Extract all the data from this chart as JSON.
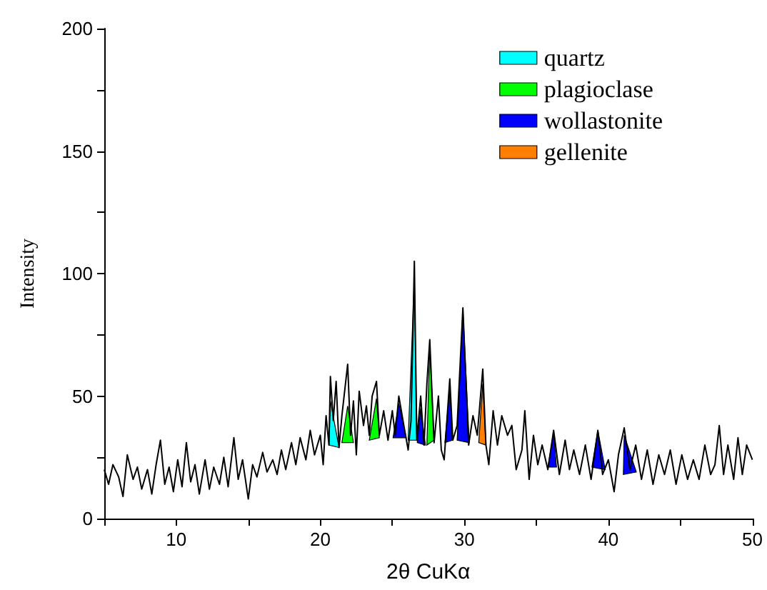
{
  "chart_data": {
    "type": "line",
    "xlabel": "2θ CuKα",
    "ylabel": "Intensity",
    "xlim": [
      5,
      50
    ],
    "xticks": [
      {
        "value": 5,
        "label": null
      },
      10,
      {
        "value": 15,
        "label": null
      },
      20,
      {
        "value": 25,
        "label": null
      },
      30,
      {
        "value": 35,
        "label": null
      },
      40,
      {
        "value": 45,
        "label": null
      },
      50
    ],
    "ylim": [
      0,
      200
    ],
    "yticks": [
      0,
      {
        "value": 25,
        "label": null
      },
      50,
      {
        "value": 75,
        "label": null
      },
      100,
      {
        "value": 125,
        "label": null
      },
      150,
      {
        "value": 175,
        "label": null
      },
      200
    ],
    "grid": false,
    "legend": "top right",
    "marker": "none",
    "line_style": "solid",
    "series": [
      {
        "color": "#000000",
        "x": [
          5,
          5.3,
          5.6,
          6,
          6.3,
          6.6,
          7,
          7.3,
          7.6,
          8,
          8.3,
          8.6,
          8.9,
          9.2,
          9.5,
          9.8,
          10.1,
          10.4,
          10.7,
          11,
          11.3,
          11.6,
          12,
          12.3,
          12.6,
          13,
          13.3,
          13.6,
          14,
          14.3,
          14.6,
          15,
          15.3,
          15.6,
          16,
          16.3,
          16.7,
          17,
          17.3,
          17.6,
          18,
          18.3,
          18.6,
          19,
          19.3,
          19.6,
          20,
          20.2,
          20.4,
          20.6,
          20.7,
          20.9,
          21.1,
          21.3,
          21.5,
          21.9,
          22.1,
          22.3,
          22.5,
          22.7,
          23,
          23.2,
          23.4,
          23.6,
          23.9,
          24.1,
          24.4,
          24.7,
          25,
          25.2,
          25.45,
          25.8,
          26.1,
          26.3,
          26.53,
          26.7,
          26.97,
          27.2,
          27.4,
          27.6,
          27.9,
          28.2,
          28.4,
          28.6,
          28.99,
          29.2,
          29.5,
          29.9,
          30.3,
          30.6,
          30.9,
          31.28,
          31.5,
          31.7,
          32,
          32.3,
          32.6,
          33,
          33.3,
          33.6,
          34,
          34.2,
          34.5,
          34.8,
          35.1,
          35.4,
          35.8,
          36.2,
          36.6,
          37,
          37.3,
          37.6,
          38,
          38.4,
          38.8,
          39.27,
          39.6,
          40,
          40.4,
          40.7,
          41.1,
          41.5,
          41.9,
          42.3,
          42.7,
          43.1,
          43.5,
          43.9,
          44.3,
          44.7,
          45.1,
          45.5,
          45.9,
          46.3,
          46.7,
          47.1,
          47.4,
          47.7,
          48,
          48.3,
          48.7,
          49,
          49.3,
          49.6,
          50
        ],
        "values": [
          20,
          14,
          22,
          17,
          9,
          26,
          16,
          21,
          12,
          20,
          10,
          22,
          32,
          14,
          21,
          11,
          24,
          13,
          31,
          15,
          22,
          10,
          24,
          12,
          21,
          14,
          25,
          13,
          33,
          16,
          24,
          8,
          22,
          17,
          27,
          19,
          24,
          18,
          28,
          20,
          31,
          22,
          33,
          24,
          36,
          26,
          34,
          22,
          42,
          30,
          58,
          40,
          56,
          29,
          42,
          63,
          34,
          48,
          26,
          52,
          38,
          46,
          34,
          50,
          56,
          34,
          44,
          32,
          44,
          34,
          50,
          38,
          28,
          40,
          105,
          32,
          50,
          30,
          55,
          73,
          31,
          50,
          28,
          24,
          57,
          32,
          38,
          86,
          30,
          42,
          34,
          61,
          30,
          22,
          44,
          30,
          42,
          34,
          38,
          20,
          28,
          44,
          16,
          34,
          22,
          30,
          20,
          36,
          18,
          32,
          20,
          28,
          18,
          30,
          16,
          36,
          18,
          24,
          11,
          26,
          37,
          20,
          30,
          16,
          28,
          14,
          26,
          18,
          28,
          14,
          26,
          16,
          24,
          16,
          30,
          18,
          22,
          38,
          18,
          30,
          16,
          33,
          18,
          30,
          24
        ]
      },
      {
        "type": "area",
        "name": "quartz",
        "color": "#00ffff",
        "x": [
          20.6,
          20.7,
          21.3,
          null,
          26.1,
          26.53,
          26.7
        ],
        "values": [
          30,
          48,
          29,
          null,
          32,
          98,
          32
        ]
      },
      {
        "type": "area",
        "name": "plagioclase",
        "color": "#00ff00",
        "x": [
          21.5,
          21.9,
          22.3,
          null,
          23.4,
          23.9,
          24.1,
          null,
          27.4,
          27.6,
          27.9
        ],
        "values": [
          31,
          46,
          31,
          null,
          32,
          49,
          33,
          null,
          30,
          70,
          32
        ]
      },
      {
        "type": "area",
        "name": "wollastonite",
        "color": "#0000ff",
        "x": [
          25.05,
          25.45,
          25.96,
          null,
          26.73,
          26.97,
          27.3,
          null,
          28.65,
          28.99,
          29.16,
          null,
          29.5,
          29.9,
          30.34,
          null,
          35.8,
          36.2,
          36.4,
          null,
          38.86,
          39.27,
          39.78,
          null,
          41.04,
          41.1,
          41.94
        ],
        "values": [
          33,
          47,
          33,
          null,
          31,
          45,
          30,
          null,
          31,
          53,
          32,
          null,
          32,
          85,
          31,
          null,
          21,
          35,
          21,
          null,
          21,
          36,
          20,
          null,
          18,
          34,
          19
        ]
      },
      {
        "type": "area",
        "name": "gellenite",
        "color": "#ff7f00",
        "x": [
          31.0,
          31.28,
          31.5
        ],
        "values": [
          31,
          55,
          30
        ]
      }
    ]
  }
}
